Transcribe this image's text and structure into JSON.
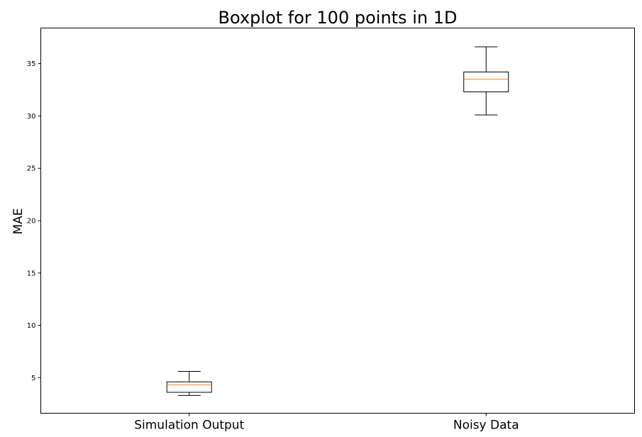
{
  "chart_data": {
    "type": "boxplot",
    "title": "Boxplot for 100 points in 1D",
    "xlabel": "",
    "ylabel": "MAE",
    "ylim": [
      1.6,
      38.4
    ],
    "yticks": [
      5,
      10,
      15,
      20,
      25,
      30,
      35
    ],
    "categories": [
      "Simulation Output",
      "Noisy Data"
    ],
    "boxes": [
      {
        "category": "Simulation Output",
        "whisker_low": 3.3,
        "q1": 3.6,
        "median": 4.3,
        "q3": 4.6,
        "whisker_high": 5.6
      },
      {
        "category": "Noisy Data",
        "whisker_low": 30.1,
        "q1": 32.3,
        "median": 33.5,
        "q3": 34.2,
        "whisker_high": 36.6
      }
    ],
    "grid": false,
    "legend": "none",
    "colors": {
      "box": "#000000",
      "median": "#ff7f0e",
      "axes": "#000000"
    }
  }
}
